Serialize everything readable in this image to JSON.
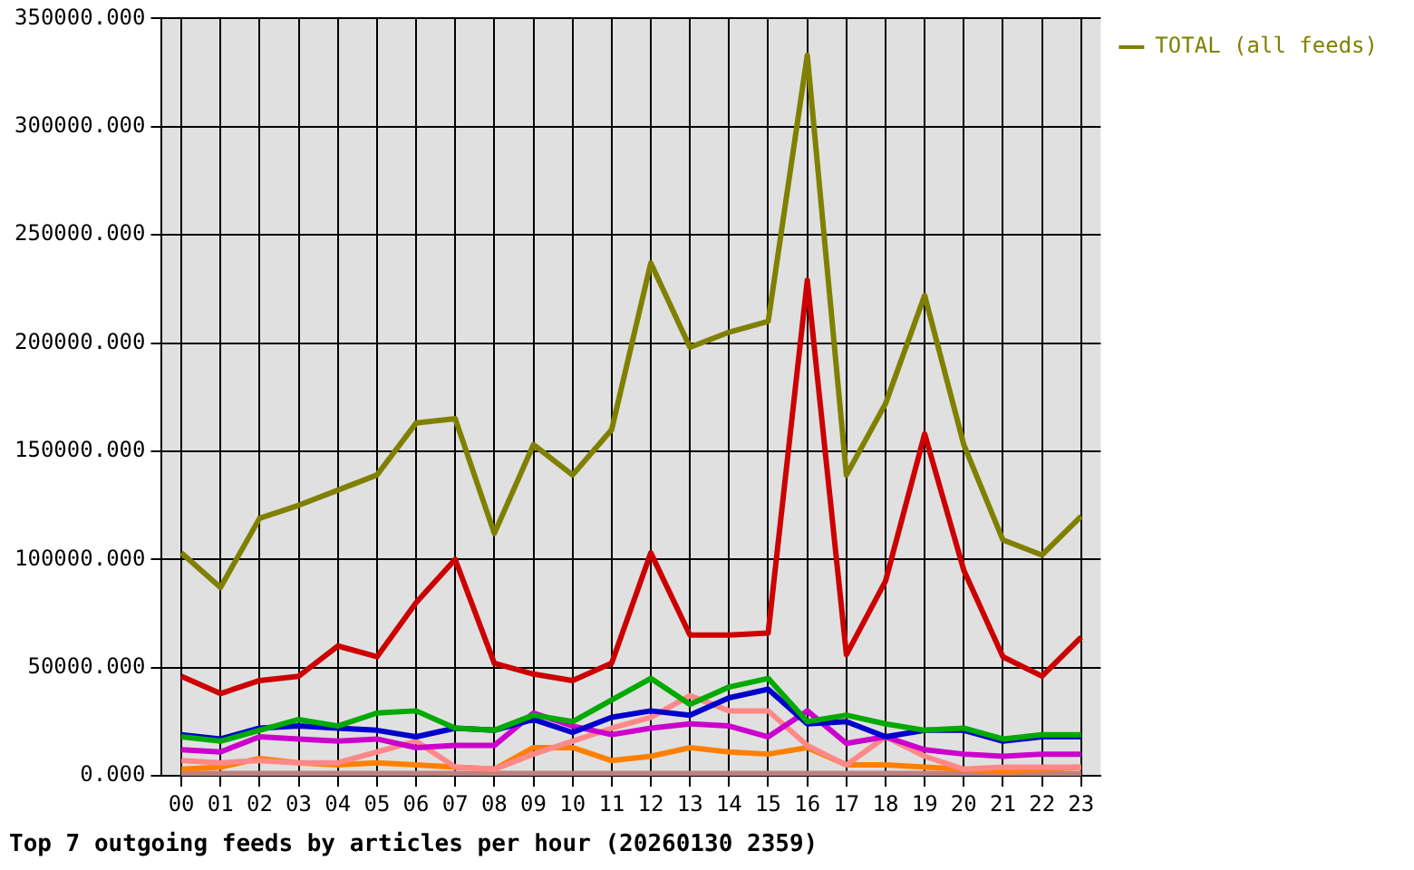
{
  "chart_data": {
    "type": "line",
    "title": "Top 7 outgoing feeds by articles per hour (20260130 2359)",
    "categories": [
      "00",
      "01",
      "02",
      "03",
      "04",
      "05",
      "06",
      "07",
      "08",
      "09",
      "10",
      "11",
      "12",
      "13",
      "14",
      "15",
      "16",
      "17",
      "18",
      "19",
      "20",
      "21",
      "22",
      "23"
    ],
    "series": [
      {
        "color": "#cc0000",
        "values": [
          46000,
          38000,
          44000,
          46000,
          60000,
          55000,
          80000,
          100000,
          52000,
          47000,
          44000,
          52000,
          103000,
          65000,
          65000,
          66000,
          229000,
          56000,
          90000,
          158000,
          95000,
          55000,
          46000,
          64000
        ]
      },
      {
        "color": "#00aa00",
        "values": [
          18000,
          16000,
          21000,
          26000,
          23000,
          29000,
          30000,
          22000,
          21000,
          28000,
          25000,
          35000,
          45000,
          33000,
          41000,
          45000,
          25000,
          28000,
          24000,
          21000,
          22000,
          17000,
          19000,
          19000
        ]
      },
      {
        "color": "#0000cc",
        "values": [
          19000,
          17000,
          22000,
          23000,
          22000,
          21000,
          18000,
          22000,
          21000,
          26000,
          20000,
          27000,
          30000,
          28000,
          36000,
          40000,
          24000,
          25000,
          18000,
          21000,
          21000,
          16000,
          18000,
          18000
        ]
      },
      {
        "color": "#cc00cc",
        "values": [
          12000,
          11000,
          18000,
          17000,
          16000,
          17000,
          13000,
          14000,
          14000,
          29000,
          23000,
          19000,
          22000,
          24000,
          23000,
          18000,
          30000,
          15000,
          18000,
          12000,
          10000,
          9000,
          10000,
          10000
        ]
      },
      {
        "color": "#ff8888",
        "values": [
          7000,
          6000,
          7000,
          6000,
          6000,
          11000,
          16000,
          4000,
          3000,
          10000,
          16000,
          22000,
          27000,
          37000,
          30000,
          30000,
          14000,
          5000,
          18000,
          9000,
          3000,
          4000,
          4000,
          4000
        ]
      },
      {
        "color": "#ff8000",
        "values": [
          3000,
          4000,
          8000,
          6000,
          5000,
          6000,
          5000,
          4000,
          3000,
          13000,
          13000,
          7000,
          9000,
          13000,
          11000,
          10000,
          13000,
          5000,
          5000,
          4000,
          3000,
          2000,
          3000,
          4000
        ]
      },
      {
        "color": "#c08080",
        "values": [
          1000,
          1000,
          1000,
          1000,
          1000,
          1000,
          1000,
          1000,
          1000,
          1000,
          1000,
          1000,
          1000,
          1000,
          1000,
          1000,
          1000,
          1000,
          1000,
          1000,
          1000,
          1000,
          1000,
          1000
        ]
      },
      {
        "name": "TOTAL (all feeds)",
        "color": "#808000",
        "values": [
          103000,
          87000,
          119000,
          125000,
          132000,
          139000,
          163000,
          165000,
          112000,
          153000,
          139000,
          160000,
          237000,
          198000,
          205000,
          210000,
          333000,
          139000,
          172000,
          222000,
          153000,
          109000,
          102000,
          120000
        ]
      }
    ],
    "ylim": [
      0,
      350000
    ],
    "yticks": [
      {
        "value": 0,
        "label": "0.000"
      },
      {
        "value": 50000,
        "label": "50000.000"
      },
      {
        "value": 100000,
        "label": "100000.000"
      },
      {
        "value": 150000,
        "label": "150000.000"
      },
      {
        "value": 200000,
        "label": "200000.000"
      },
      {
        "value": 250000,
        "label": "250000.000"
      },
      {
        "value": 300000,
        "label": "300000.000"
      },
      {
        "value": 350000,
        "label": "350000.000"
      }
    ],
    "grid": true,
    "legend": "top right",
    "marker": "none",
    "line_style": "solid"
  }
}
